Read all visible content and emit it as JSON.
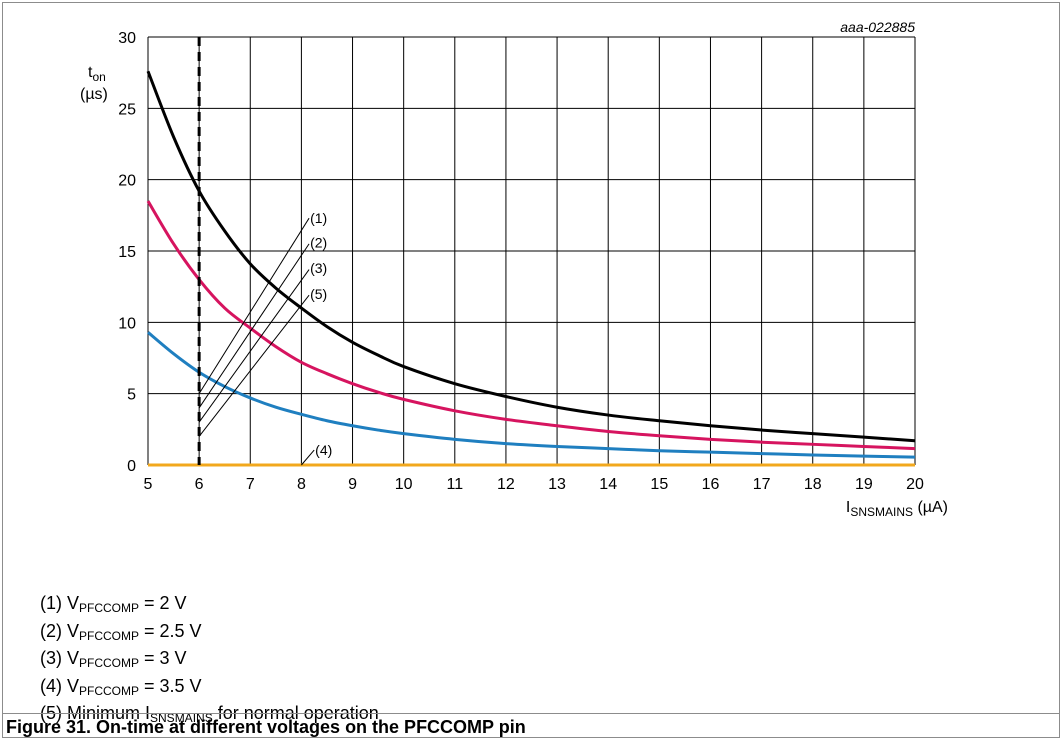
{
  "chart_data": {
    "type": "line",
    "code_label": "aaa-022885",
    "ylabel": {
      "main": "t",
      "sub": "on",
      "unit": "(µs)"
    },
    "xlabel": {
      "main": "I",
      "sub": "SNSMAINS",
      "unit": " (µA)"
    },
    "xlim": [
      5,
      20
    ],
    "ylim": [
      0,
      30
    ],
    "x_ticks": [
      "5",
      "6",
      "7",
      "8",
      "9",
      "10",
      "11",
      "12",
      "13",
      "14",
      "15",
      "16",
      "17",
      "18",
      "19",
      "20"
    ],
    "y_ticks": [
      "0",
      "5",
      "10",
      "15",
      "20",
      "25",
      "30"
    ],
    "grid": true,
    "marker_line": {
      "x": 6,
      "style": "dashed"
    },
    "series": [
      {
        "id": "1",
        "color": "#000000",
        "x": [
          5,
          5.5,
          6,
          6.5,
          7,
          7.5,
          8,
          8.5,
          9,
          9.5,
          10,
          11,
          12,
          13,
          14,
          15,
          16,
          17,
          18,
          19,
          20
        ],
        "y": [
          27.6,
          23.0,
          19.2,
          16.4,
          14.1,
          12.4,
          11.0,
          9.7,
          8.6,
          7.7,
          6.9,
          5.7,
          4.8,
          4.05,
          3.5,
          3.1,
          2.75,
          2.45,
          2.2,
          1.95,
          1.7
        ]
      },
      {
        "id": "2",
        "color": "#d6145f",
        "x": [
          5,
          5.5,
          6,
          6.5,
          7,
          7.5,
          8,
          8.5,
          9,
          9.5,
          10,
          11,
          12,
          13,
          14,
          15,
          16,
          17,
          18,
          19,
          20
        ],
        "y": [
          18.5,
          15.5,
          13.0,
          11.0,
          9.6,
          8.3,
          7.2,
          6.4,
          5.7,
          5.1,
          4.6,
          3.8,
          3.2,
          2.75,
          2.35,
          2.05,
          1.8,
          1.6,
          1.45,
          1.3,
          1.15
        ]
      },
      {
        "id": "3",
        "color": "#1f7fc0",
        "x": [
          5,
          5.5,
          6,
          6.5,
          7,
          7.5,
          8,
          8.5,
          9,
          9.5,
          10,
          11,
          12,
          13,
          14,
          15,
          16,
          17,
          18,
          19,
          20
        ],
        "y": [
          9.3,
          7.8,
          6.5,
          5.5,
          4.7,
          4.05,
          3.55,
          3.1,
          2.75,
          2.45,
          2.2,
          1.8,
          1.5,
          1.3,
          1.15,
          1.0,
          0.9,
          0.8,
          0.7,
          0.62,
          0.55
        ]
      },
      {
        "id": "4",
        "color": "#f2a81d",
        "x": [
          5,
          20
        ],
        "y": [
          0,
          0
        ]
      }
    ],
    "annotations": [
      {
        "label": "(1)",
        "line_from": [
          6.0,
          5.0
        ],
        "line_to": [
          8.15,
          17.3
        ],
        "text_at": [
          8.15,
          17.3
        ]
      },
      {
        "label": "(2)",
        "line_from": [
          6.0,
          4.0
        ],
        "line_to": [
          8.15,
          15.5
        ],
        "text_at": [
          8.15,
          15.6
        ]
      },
      {
        "label": "(3)",
        "line_from": [
          6.0,
          3.0
        ],
        "line_to": [
          8.15,
          13.7
        ],
        "text_at": [
          8.15,
          13.8
        ]
      },
      {
        "label": "(5)",
        "line_from": [
          6.0,
          2.0
        ],
        "line_to": [
          8.15,
          11.9
        ],
        "text_at": [
          8.15,
          12.0
        ]
      },
      {
        "label": "(4)",
        "line_from": [
          8.0,
          0
        ],
        "line_to": [
          8.25,
          1.05
        ],
        "text_at": [
          8.25,
          1.05
        ]
      }
    ]
  },
  "legend": [
    {
      "pre": "(1) V",
      "sub": "PFCCOMP",
      "post": " = 2 V"
    },
    {
      "pre": "(2) V",
      "sub": "PFCCOMP",
      "post": " = 2.5 V"
    },
    {
      "pre": "(3) V",
      "sub": "PFCCOMP",
      "post": " = 3 V"
    },
    {
      "pre": "(4) V",
      "sub": "PFCCOMP",
      "post": " = 3.5 V"
    },
    {
      "pre": "(5) Minimum I",
      "sub": "SNSMAINS",
      "post": " for normal operation"
    }
  ],
  "caption": "Figure 31.  On-time at different voltages on the PFCCOMP pin"
}
